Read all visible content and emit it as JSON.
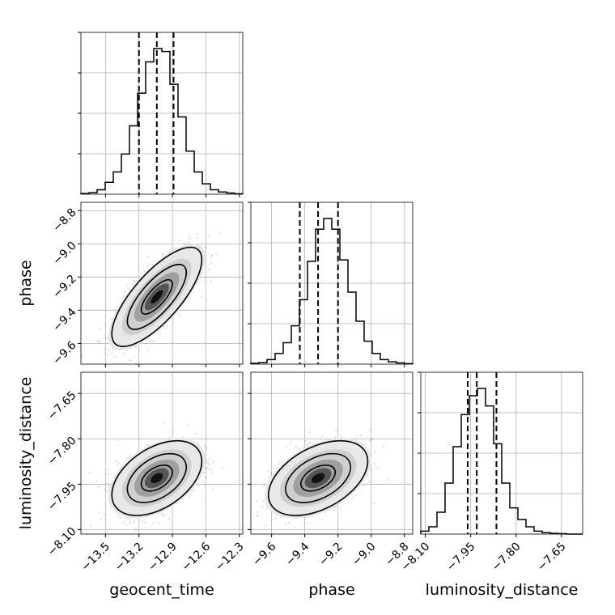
{
  "chart_data": {
    "type": "corner",
    "parameters": [
      "geocent_time",
      "phase",
      "luminosity_distance"
    ],
    "axis_labels": {
      "geocent_time": "geocent_time",
      "phase": "phase",
      "luminosity_distance": "luminosity_distance"
    },
    "ticks": {
      "geocent_time": {
        "values": [
          -13.5,
          -13.2,
          -12.9,
          -12.6,
          -12.3
        ],
        "labels": [
          "−13.5",
          "−13.2",
          "−12.9",
          "−12.6",
          "−12.3"
        ],
        "range": [
          -13.72,
          -12.27
        ]
      },
      "phase": {
        "values": [
          -9.6,
          -9.4,
          -9.2,
          -9.0,
          -8.8
        ],
        "labels": [
          "−9.6",
          "−9.4",
          "−9.2",
          "−9.0",
          "−8.8"
        ],
        "range": [
          -9.725,
          -8.75
        ]
      },
      "luminosity_distance": {
        "values": [
          -8.1,
          -7.95,
          -7.8,
          -7.65
        ],
        "labels": [
          "−8.10",
          "−7.95",
          "−7.80",
          "−7.65"
        ],
        "range": [
          -8.115,
          -7.58
        ]
      }
    },
    "quantiles": {
      "geocent_time": [
        -13.2,
        -13.04,
        -12.89
      ],
      "phase": [
        -9.43,
        -9.32,
        -9.2
      ],
      "luminosity_distance": [
        -7.96,
        -7.93,
        -7.865
      ]
    },
    "histograms": {
      "geocent_time": [
        0.005,
        0.01,
        0.03,
        0.08,
        0.15,
        0.27,
        0.46,
        0.68,
        0.89,
        0.98,
        0.96,
        0.74,
        0.52,
        0.29,
        0.15,
        0.07,
        0.03,
        0.015,
        0.008,
        0.003
      ],
      "phase": [
        0.005,
        0.01,
        0.03,
        0.07,
        0.14,
        0.25,
        0.42,
        0.67,
        0.88,
        0.95,
        0.88,
        0.68,
        0.47,
        0.28,
        0.15,
        0.07,
        0.03,
        0.015,
        0.008,
        0.003
      ],
      "luminosity_distance": [
        0.02,
        0.05,
        0.15,
        0.35,
        0.6,
        0.82,
        0.95,
        1.0,
        0.88,
        0.62,
        0.35,
        0.18,
        0.1,
        0.05,
        0.02,
        0.01,
        0.005,
        0.003,
        0.0,
        0.0
      ]
    },
    "correlations": {
      "phase|geocent_time": 0.75,
      "luminosity_distance|geocent_time": 0.45,
      "luminosity_distance|phase": 0.45
    },
    "grid": true
  }
}
